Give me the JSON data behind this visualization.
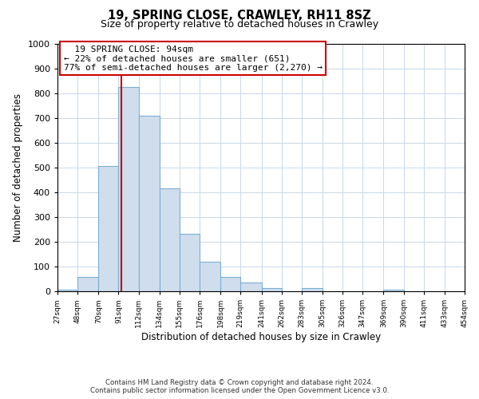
{
  "title": "19, SPRING CLOSE, CRAWLEY, RH11 8SZ",
  "subtitle": "Size of property relative to detached houses in Crawley",
  "xlabel": "Distribution of detached houses by size in Crawley",
  "ylabel": "Number of detached properties",
  "footnote1": "Contains HM Land Registry data © Crown copyright and database right 2024.",
  "footnote2": "Contains public sector information licensed under the Open Government Licence v3.0.",
  "bin_edges": [
    27,
    48,
    70,
    91,
    112,
    134,
    155,
    176,
    198,
    219,
    241,
    262,
    283,
    305,
    326,
    347,
    369,
    390,
    411,
    433,
    454
  ],
  "bar_heights": [
    5,
    57,
    505,
    825,
    710,
    415,
    232,
    119,
    57,
    35,
    12,
    0,
    14,
    0,
    0,
    0,
    6,
    0,
    0,
    0
  ],
  "bar_color": "#cfdded",
  "bar_edge_color": "#7bafd4",
  "property_line_x": 94,
  "property_line_color": "#cc0000",
  "annotation_title": "19 SPRING CLOSE: 94sqm",
  "annotation_line1": "← 22% of detached houses are smaller (651)",
  "annotation_line2": "77% of semi-detached houses are larger (2,270) →",
  "annotation_box_color": "#ffffff",
  "annotation_box_edge": "#cc0000",
  "ylim": [
    0,
    1000
  ],
  "yticks": [
    0,
    100,
    200,
    300,
    400,
    500,
    600,
    700,
    800,
    900,
    1000
  ],
  "tick_labels": [
    "27sqm",
    "48sqm",
    "70sqm",
    "91sqm",
    "112sqm",
    "134sqm",
    "155sqm",
    "176sqm",
    "198sqm",
    "219sqm",
    "241sqm",
    "262sqm",
    "283sqm",
    "305sqm",
    "326sqm",
    "347sqm",
    "369sqm",
    "390sqm",
    "411sqm",
    "433sqm",
    "454sqm"
  ]
}
